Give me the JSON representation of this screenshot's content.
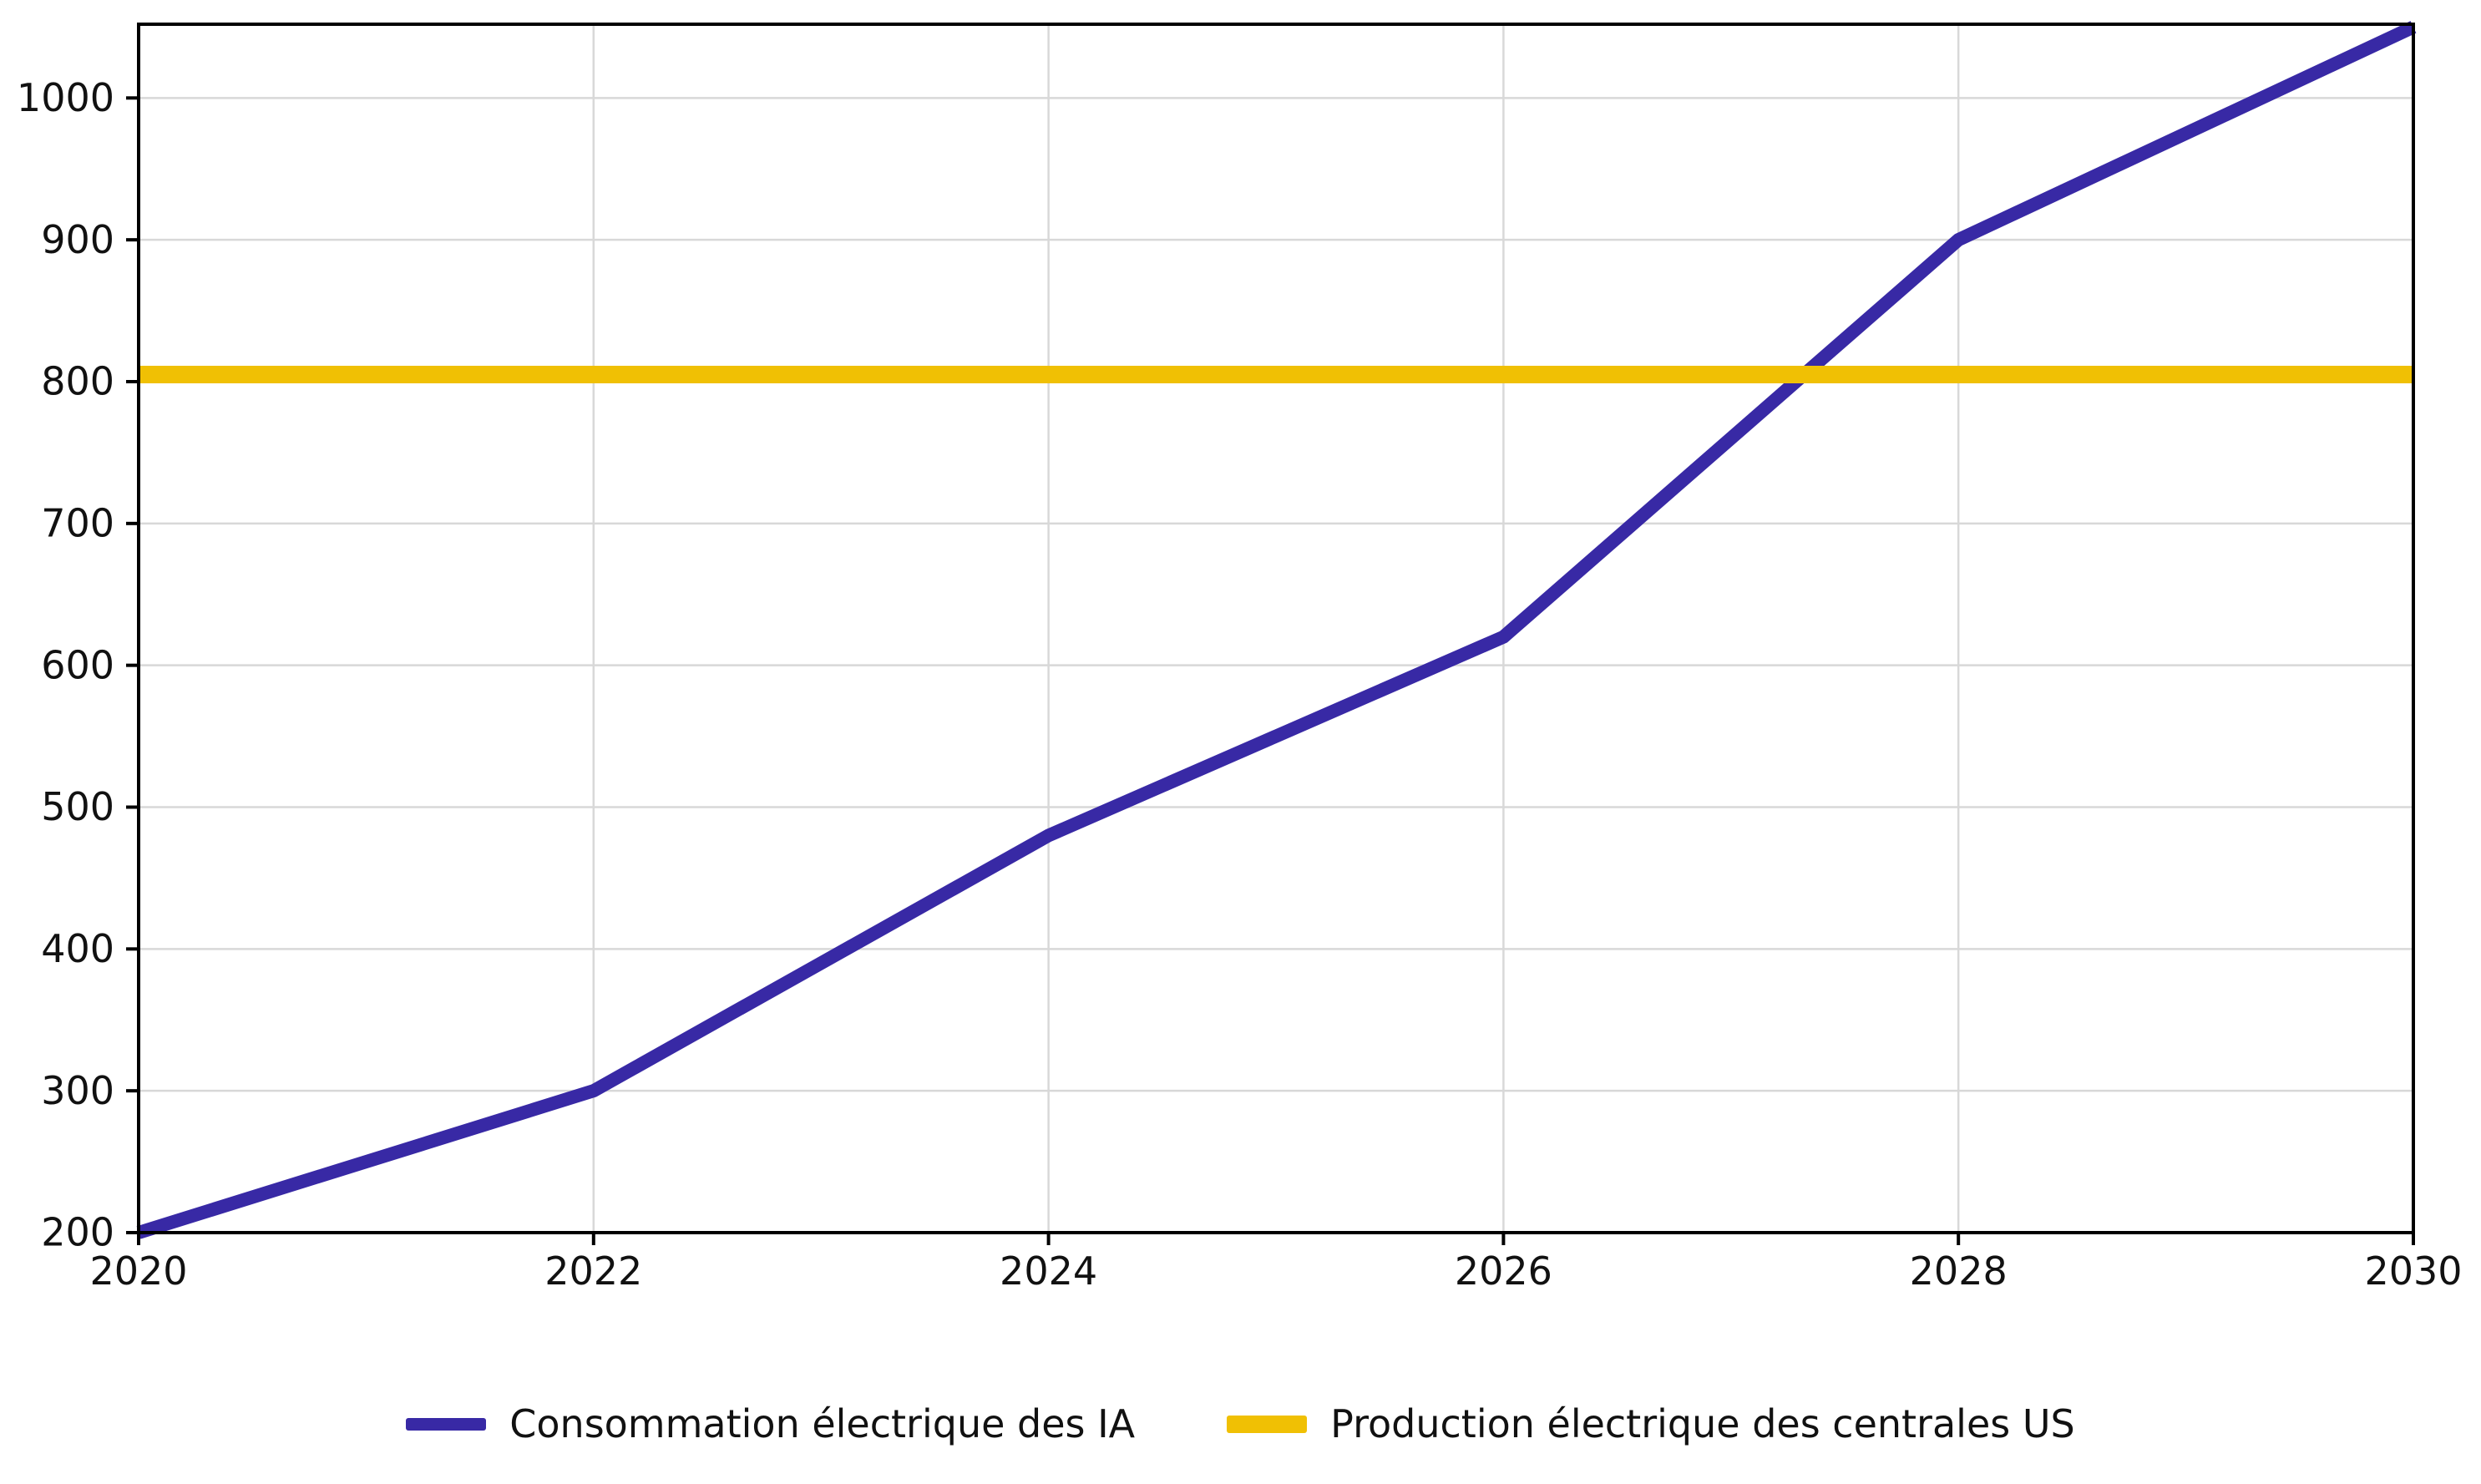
{
  "chart_data": {
    "type": "line",
    "x": [
      2020,
      2022,
      2024,
      2026,
      2028,
      2030
    ],
    "series": [
      {
        "name": "Consommation électrique des IA",
        "values": [
          200,
          300,
          480,
          620,
          900,
          1050
        ],
        "color": "#3829A5",
        "linewidth": 16
      },
      {
        "name": "Production électrique des centrales US",
        "values": [
          805,
          805,
          805,
          805,
          805,
          805
        ],
        "color": "#F0C004",
        "linewidth": 21
      }
    ],
    "title": "",
    "xlabel": "",
    "ylabel": "",
    "xlim": [
      2020,
      2030
    ],
    "ylim": [
      200,
      1052
    ],
    "xticks": [
      "2020",
      "2022",
      "2024",
      "2026",
      "2028",
      "2030"
    ],
    "yticks": [
      "200",
      "300",
      "400",
      "500",
      "600",
      "700",
      "800",
      "900",
      "1000"
    ],
    "grid": true,
    "grid_color": "#D8D8D8",
    "frame_color": "#000000",
    "legend_position": "bottom-center"
  }
}
